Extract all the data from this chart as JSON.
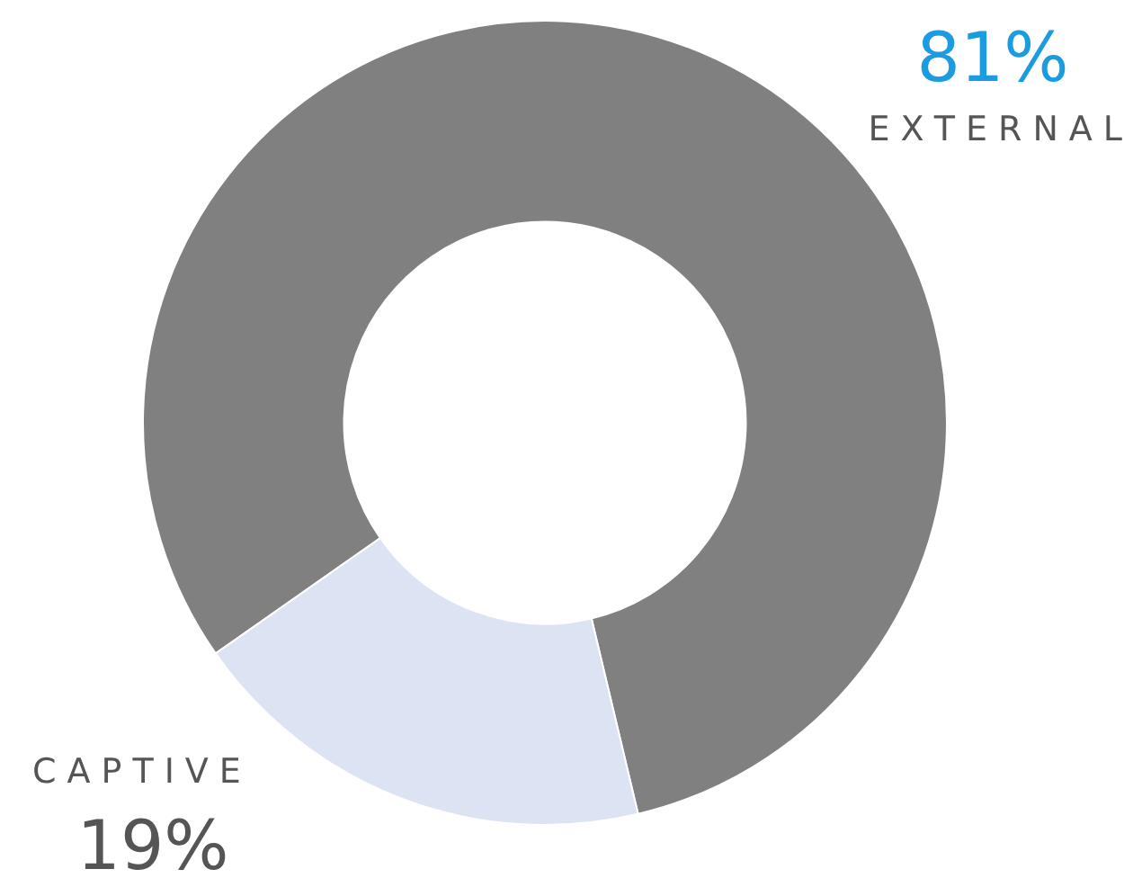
{
  "chart_data": {
    "type": "donut",
    "categories": [
      "EXTERNAL",
      "CAPTIVE"
    ],
    "values": [
      81,
      19
    ],
    "colors": [
      "#808080",
      "#dce3f3"
    ],
    "value_labels": [
      "81%",
      "19%"
    ],
    "legend": false
  }
}
